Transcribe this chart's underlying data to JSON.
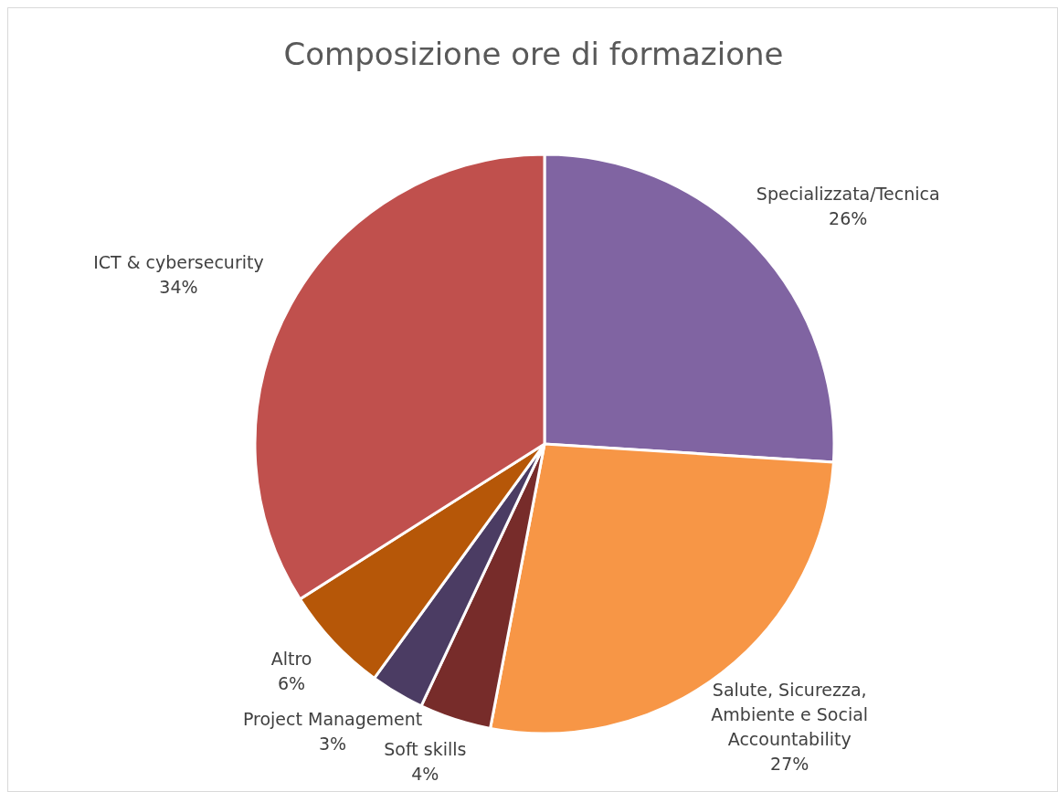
{
  "chart_data": {
    "type": "pie",
    "title": "Composizione ore di formazione",
    "categories": [
      "Specializzata/Tecnica",
      "Salute, Sicurezza, Ambiente e Social Accountability",
      "Soft skills",
      "Project Management",
      "Altro",
      "ICT & cybersecurity"
    ],
    "values": [
      26,
      27,
      4,
      3,
      6,
      34
    ],
    "colors": [
      "#8064a2",
      "#f79646",
      "#772c2a",
      "#4b3c63",
      "#b65708",
      "#c0504d"
    ],
    "value_labels": [
      "26%",
      "27%",
      "4%",
      "3%",
      "6%",
      "34%"
    ],
    "legend": false
  }
}
